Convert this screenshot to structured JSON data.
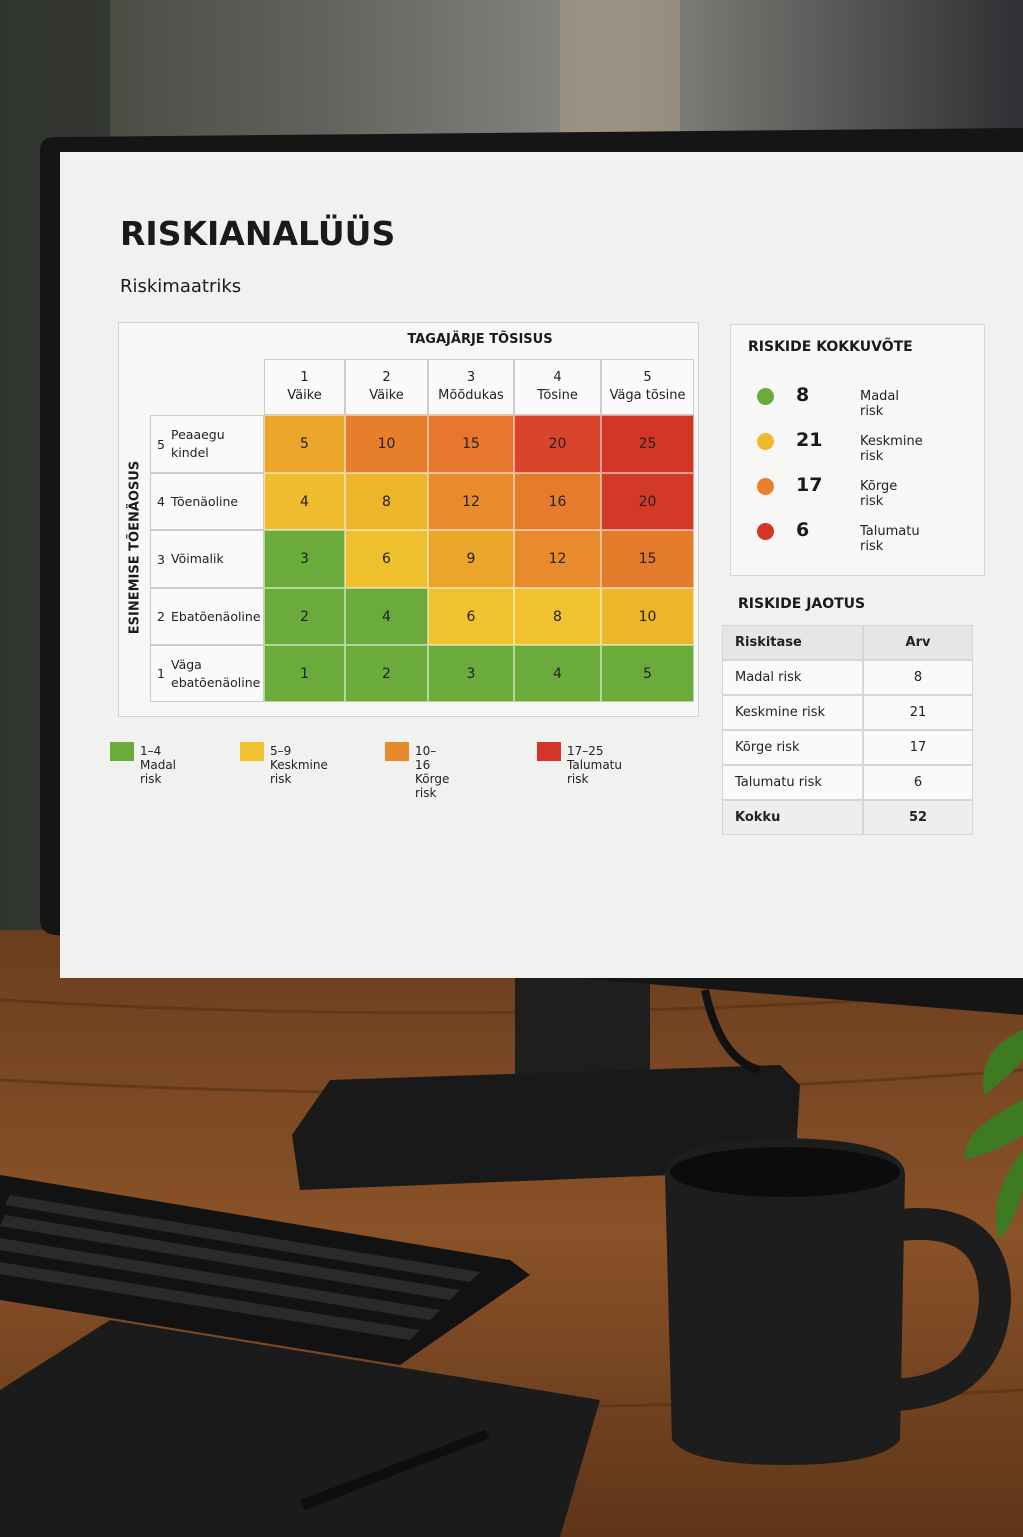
{
  "screen": {
    "title": "RISKIANALÜÜS",
    "subtitle": "Riskimaatriks",
    "matrix": {
      "col_axis": "TAGAJÄRJE TÕSISUS",
      "row_axis": "ESINEMISE TÕENÄOSUS",
      "columns": [
        {
          "num": "1",
          "label": "Väike"
        },
        {
          "num": "2",
          "label": "Väike"
        },
        {
          "num": "3",
          "label": "Mõõdukas"
        },
        {
          "num": "4",
          "label": "Tõsine"
        },
        {
          "num": "5",
          "label": "Väga tõsine"
        }
      ],
      "rows": [
        {
          "num": "5",
          "label": "Peaaegu kindel",
          "cells": [
            5,
            10,
            15,
            20,
            25
          ],
          "colors": [
            "#eba52a",
            "#e77e2c",
            "#e7772c",
            "#d8452a",
            "#d33526"
          ]
        },
        {
          "num": "4",
          "label": "Tõenäoline",
          "cells": [
            4,
            8,
            12,
            16,
            20
          ],
          "colors": [
            "#efbd2d",
            "#edb52a",
            "#e98a2d",
            "#e67b2c",
            "#d23a27"
          ]
        },
        {
          "num": "3",
          "label": "Võimalik",
          "cells": [
            3,
            6,
            9,
            12,
            15
          ],
          "colors": [
            "#6aab3c",
            "#eec02d",
            "#eba52a",
            "#e98a2d",
            "#e47a2c"
          ]
        },
        {
          "num": "2",
          "label": "Ebatõenäoline",
          "cells": [
            2,
            4,
            6,
            8,
            10
          ],
          "colors": [
            "#6aab3c",
            "#6aab3c",
            "#f0c22f",
            "#f0c22f",
            "#edb52a"
          ]
        },
        {
          "num": "1",
          "label": "Väga ebatõenäoline",
          "cells": [
            1,
            2,
            3,
            4,
            5
          ],
          "colors": [
            "#6aab3c",
            "#6aab3c",
            "#6aab3c",
            "#6aab3c",
            "#6aab3c"
          ]
        }
      ]
    },
    "legend": [
      {
        "label": "1–4 Madal risk",
        "color": "#6aab3c"
      },
      {
        "label": "5–9 Keskmine risk",
        "color": "#f0c22f"
      },
      {
        "label": "10–16 Kõrge risk",
        "color": "#e8892d"
      },
      {
        "label": "17–25 Talumatu risk",
        "color": "#d33526"
      }
    ],
    "summary": {
      "title": "RISKIDE KOKKUVÕTE",
      "items": [
        {
          "count": 8,
          "label": "Madal risk",
          "color": "#6aab3c"
        },
        {
          "count": 21,
          "label": "Keskmine risk",
          "color": "#f0b82a"
        },
        {
          "count": 17,
          "label": "Kõrge risk",
          "color": "#e8802c"
        },
        {
          "count": 6,
          "label": "Talumatu risk",
          "color": "#d33526"
        }
      ]
    },
    "distribution": {
      "title": "RISKIDE JAOTUS",
      "header": [
        "Riskitase",
        "Arv"
      ],
      "rows": [
        [
          "Madal risk",
          8
        ],
        [
          "Keskmine risk",
          21
        ],
        [
          "Kõrge risk",
          17
        ],
        [
          "Talumatu risk",
          6
        ]
      ],
      "total": [
        "Kokku",
        52
      ]
    }
  }
}
